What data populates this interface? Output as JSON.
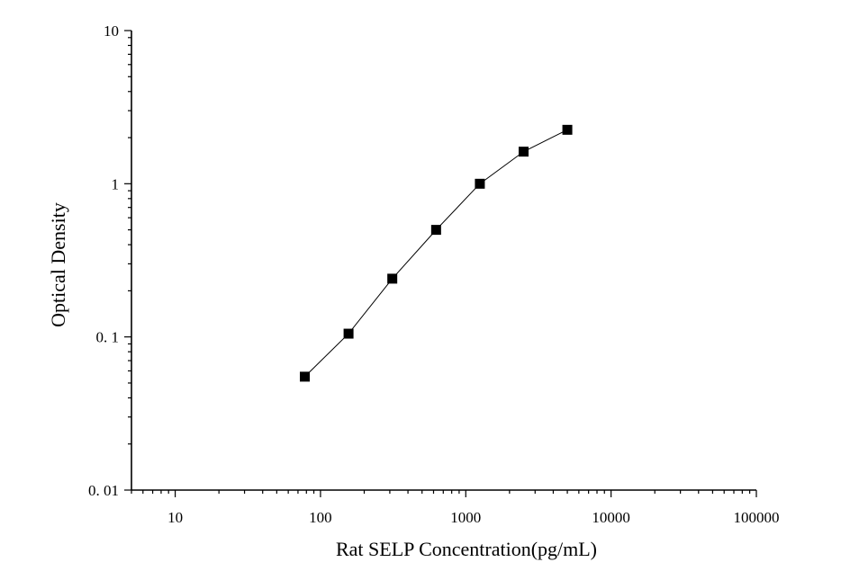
{
  "chart_data": {
    "type": "scatter",
    "title": "",
    "xlabel": "Rat SELP Concentration(pg/mL)",
    "ylabel": "Optical Density",
    "x_scale": "log",
    "y_scale": "log",
    "xlim": [
      5,
      100000
    ],
    "ylim": [
      0.01,
      10
    ],
    "x_ticks": [
      {
        "value": 10,
        "label": "10"
      },
      {
        "value": 100,
        "label": "100"
      },
      {
        "value": 1000,
        "label": "1000"
      },
      {
        "value": 10000,
        "label": "10000"
      },
      {
        "value": 100000,
        "label": "100000"
      }
    ],
    "y_ticks": [
      {
        "value": 0.01,
        "label": "0. 01"
      },
      {
        "value": 0.1,
        "label": "0. 1"
      },
      {
        "value": 1,
        "label": "1"
      },
      {
        "value": 10,
        "label": "10"
      }
    ],
    "grid": false,
    "connect_points": true,
    "marker": "square",
    "color": "#000000",
    "series": [
      {
        "x": [
          78,
          156,
          312,
          625,
          1250,
          2500,
          5000
        ],
        "y": [
          0.055,
          0.105,
          0.24,
          0.5,
          1.0,
          1.62,
          2.25
        ]
      }
    ]
  }
}
